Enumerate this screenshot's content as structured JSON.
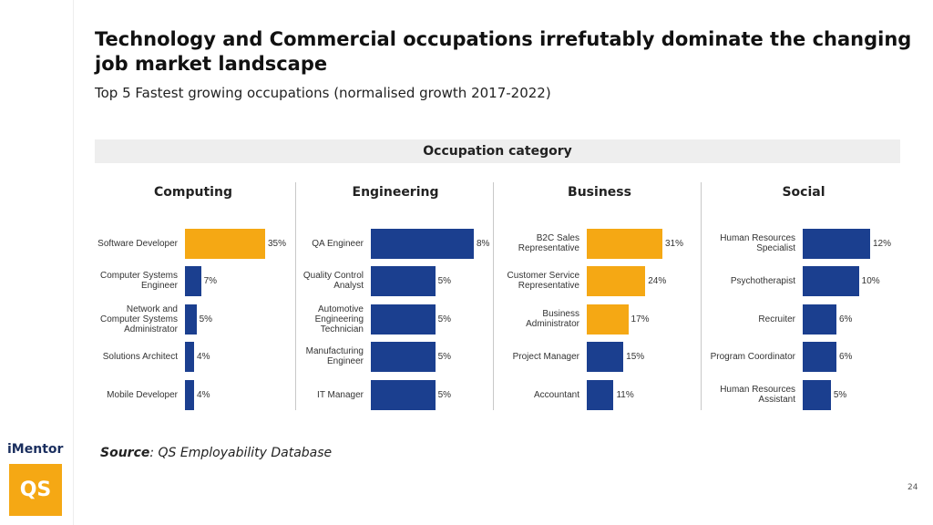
{
  "title": "Technology and Commercial occupations irrefutably dominate the changing job market landscape",
  "subtitle": "Top 5 Fastest growing occupations (normalised growth 2017-2022)",
  "header": "Occupation category",
  "source_label": "Source",
  "source_text": ": QS Employability Database",
  "logo_text": "iMentor",
  "logo_badge": "QS",
  "page_number": "24",
  "chart_data": [
    {
      "type": "bar",
      "orientation": "horizontal",
      "title": "Computing",
      "categories": [
        "Software Developer",
        "Computer Systems Engineer",
        "Network and Computer Systems Administrator",
        "Solutions Architect",
        "Mobile Developer"
      ],
      "values": [
        35,
        7,
        5,
        4,
        4
      ],
      "value_labels": [
        "35%",
        "7%",
        "5%",
        "4%",
        "4%"
      ],
      "colors": [
        "#f5a814",
        "#1b3f8f",
        "#1b3f8f",
        "#1b3f8f",
        "#1b3f8f"
      ]
    },
    {
      "type": "bar",
      "orientation": "horizontal",
      "title": "Engineering",
      "categories": [
        "QA Engineer",
        "Quality Control Analyst",
        "Automotive Engineering Technician",
        "Manufacturing Engineer",
        "IT Manager"
      ],
      "values": [
        8,
        5,
        5,
        5,
        5
      ],
      "value_labels": [
        "8%",
        "5%",
        "5%",
        "5%",
        "5%"
      ],
      "colors": [
        "#1b3f8f",
        "#1b3f8f",
        "#1b3f8f",
        "#1b3f8f",
        "#1b3f8f"
      ]
    },
    {
      "type": "bar",
      "orientation": "horizontal",
      "title": "Business",
      "categories": [
        "B2C Sales Representative",
        "Customer Service Representative",
        "Business Administrator",
        "Project Manager",
        "Accountant"
      ],
      "values": [
        31,
        24,
        17,
        15,
        11
      ],
      "value_labels": [
        "31%",
        "24%",
        "17%",
        "15%",
        "11%"
      ],
      "colors": [
        "#f5a814",
        "#f5a814",
        "#f5a814",
        "#1b3f8f",
        "#1b3f8f"
      ]
    },
    {
      "type": "bar",
      "orientation": "horizontal",
      "title": "Social",
      "categories": [
        "Human Resources Specialist",
        "Psychotherapist",
        "Recruiter",
        "Program Coordinator",
        "Human Resources Assistant"
      ],
      "values": [
        12,
        10,
        6,
        6,
        5
      ],
      "value_labels": [
        "12%",
        "10%",
        "6%",
        "6%",
        "5%"
      ],
      "colors": [
        "#1b3f8f",
        "#1b3f8f",
        "#1b3f8f",
        "#1b3f8f",
        "#1b3f8f"
      ]
    }
  ]
}
